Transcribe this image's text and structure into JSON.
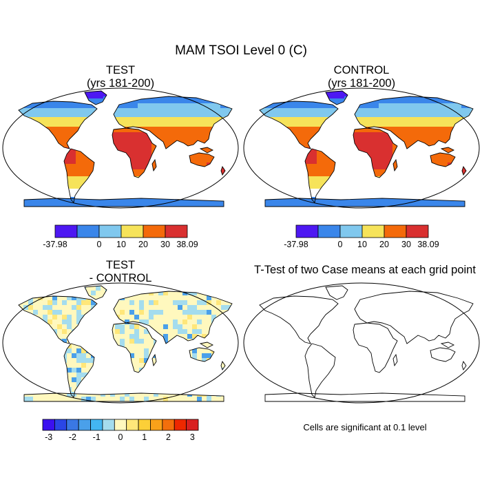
{
  "title": "MAM TSOI Level 0 (C)",
  "panels": {
    "test": {
      "line1": "TEST",
      "line2": "(yrs 181-200)"
    },
    "control": {
      "line1": "CONTROL",
      "line2": "(yrs 181-200)"
    },
    "difference": {
      "line1": "TEST",
      "line2": "- CONTROL"
    },
    "ttest": {
      "title": "T-Test of two Case means at each grid point",
      "note": "Cells are significant at 0.1 level"
    }
  },
  "colorbar_main": {
    "colors": [
      "#4d18f2",
      "#3a86ea",
      "#80c8ee",
      "#f6e35a",
      "#f46a0a",
      "#d93030"
    ],
    "labels": [
      "-37.98",
      "0",
      "10",
      "20",
      "30",
      "38.09"
    ]
  },
  "colorbar_diff": {
    "colors": [
      "#3b10f0",
      "#2a46e6",
      "#3a78e4",
      "#4aa0ea",
      "#43b6f2",
      "#a4dcee",
      "#fff8be",
      "#ffe77a",
      "#fccf38",
      "#f9a11a",
      "#f36f0c",
      "#ee2800",
      "#d92020"
    ],
    "labels": [
      "-3",
      "-2",
      "-1",
      "0",
      "1",
      "2",
      "3"
    ]
  }
}
